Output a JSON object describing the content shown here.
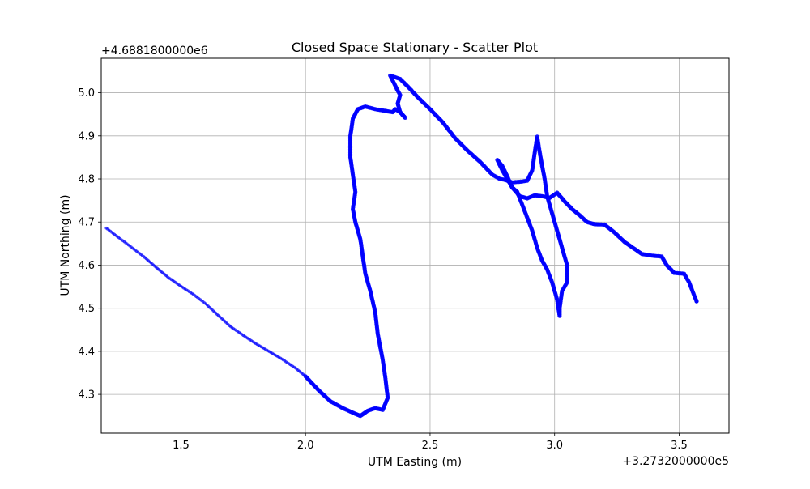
{
  "chart_data": {
    "type": "scatter",
    "title": "Closed Space Stationary - Scatter Plot",
    "xlabel": "UTM Easting (m)",
    "ylabel": "UTM Northing (m)",
    "x_offset_label": "+3.2732000000e5",
    "y_offset_label": "+4.6881800000e6",
    "xlim": [
      1.18,
      3.7
    ],
    "ylim": [
      4.21,
      5.08
    ],
    "xticks": [
      1.5,
      2.0,
      2.5,
      3.0,
      3.5
    ],
    "xtick_labels": [
      "1.5",
      "2.0",
      "2.5",
      "3.0",
      "3.5"
    ],
    "yticks": [
      4.3,
      4.4,
      4.5,
      4.6,
      4.7,
      4.8,
      4.9,
      5.0
    ],
    "ytick_labels": [
      "4.3",
      "4.4",
      "4.5",
      "4.6",
      "4.7",
      "4.8",
      "4.9",
      "5.0"
    ],
    "grid": true,
    "color": "#0000ff",
    "series": [
      {
        "points": [
          [
            1.2,
            4.686
          ],
          [
            1.25,
            4.664
          ],
          [
            1.3,
            4.642
          ],
          [
            1.35,
            4.62
          ],
          [
            1.4,
            4.595
          ],
          [
            1.45,
            4.571
          ],
          [
            1.5,
            4.551
          ],
          [
            1.55,
            4.532
          ],
          [
            1.6,
            4.51
          ],
          [
            1.65,
            4.483
          ],
          [
            1.7,
            4.457
          ],
          [
            1.75,
            4.437
          ],
          [
            1.8,
            4.418
          ],
          [
            1.85,
            4.401
          ],
          [
            1.9,
            4.384
          ],
          [
            1.96,
            4.361
          ],
          [
            2.0,
            4.342
          ],
          [
            2.05,
            4.311
          ],
          [
            2.1,
            4.284
          ],
          [
            2.15,
            4.268
          ],
          [
            2.2,
            4.255
          ],
          [
            2.22,
            4.25
          ],
          [
            2.25,
            4.262
          ],
          [
            2.28,
            4.268
          ],
          [
            2.31,
            4.264
          ],
          [
            2.33,
            4.292
          ],
          [
            2.32,
            4.34
          ],
          [
            2.31,
            4.38
          ],
          [
            2.29,
            4.44
          ],
          [
            2.28,
            4.49
          ],
          [
            2.26,
            4.54
          ],
          [
            2.24,
            4.58
          ],
          [
            2.23,
            4.62
          ],
          [
            2.22,
            4.66
          ],
          [
            2.2,
            4.7
          ],
          [
            2.19,
            4.73
          ],
          [
            2.2,
            4.77
          ],
          [
            2.19,
            4.81
          ],
          [
            2.18,
            4.85
          ],
          [
            2.18,
            4.9
          ],
          [
            2.19,
            4.94
          ],
          [
            2.21,
            4.962
          ],
          [
            2.24,
            4.968
          ],
          [
            2.28,
            4.962
          ],
          [
            2.32,
            4.958
          ],
          [
            2.35,
            4.955
          ],
          [
            2.36,
            4.962
          ],
          [
            2.38,
            4.955
          ],
          [
            2.4,
            4.942
          ],
          [
            2.38,
            4.955
          ],
          [
            2.37,
            4.975
          ],
          [
            2.38,
            4.995
          ],
          [
            2.37,
            5.005
          ],
          [
            2.34,
            5.04
          ],
          [
            2.38,
            5.032
          ],
          [
            2.41,
            5.015
          ],
          [
            2.45,
            4.99
          ],
          [
            2.5,
            4.962
          ],
          [
            2.55,
            4.932
          ],
          [
            2.6,
            4.895
          ],
          [
            2.65,
            4.866
          ],
          [
            2.7,
            4.84
          ],
          [
            2.75,
            4.81
          ],
          [
            2.78,
            4.8
          ],
          [
            2.8,
            4.798
          ],
          [
            2.83,
            4.792
          ],
          [
            2.87,
            4.794
          ],
          [
            2.89,
            4.796
          ],
          [
            2.91,
            4.82
          ],
          [
            2.92,
            4.86
          ],
          [
            2.93,
            4.898
          ],
          [
            2.94,
            4.862
          ],
          [
            2.95,
            4.83
          ],
          [
            2.96,
            4.8
          ],
          [
            2.97,
            4.76
          ],
          [
            2.99,
            4.72
          ],
          [
            3.01,
            4.68
          ],
          [
            3.03,
            4.64
          ],
          [
            3.05,
            4.6
          ],
          [
            3.05,
            4.56
          ],
          [
            3.03,
            4.54
          ],
          [
            3.02,
            4.5
          ],
          [
            3.02,
            4.482
          ],
          [
            3.01,
            4.52
          ],
          [
            2.99,
            4.56
          ],
          [
            2.97,
            4.59
          ],
          [
            2.95,
            4.61
          ],
          [
            2.93,
            4.64
          ],
          [
            2.91,
            4.68
          ],
          [
            2.89,
            4.71
          ],
          [
            2.87,
            4.74
          ],
          [
            2.85,
            4.77
          ],
          [
            2.83,
            4.78
          ],
          [
            2.81,
            4.8
          ],
          [
            2.79,
            4.82
          ],
          [
            2.77,
            4.844
          ],
          [
            2.79,
            4.83
          ],
          [
            2.81,
            4.806
          ],
          [
            2.83,
            4.78
          ],
          [
            2.86,
            4.76
          ],
          [
            2.89,
            4.755
          ],
          [
            2.92,
            4.762
          ],
          [
            2.95,
            4.76
          ],
          [
            2.98,
            4.756
          ],
          [
            3.01,
            4.768
          ],
          [
            3.04,
            4.748
          ],
          [
            3.07,
            4.73
          ],
          [
            3.1,
            4.716
          ],
          [
            3.13,
            4.7
          ],
          [
            3.16,
            4.695
          ],
          [
            3.2,
            4.694
          ],
          [
            3.24,
            4.676
          ],
          [
            3.28,
            4.654
          ],
          [
            3.31,
            4.642
          ],
          [
            3.35,
            4.626
          ],
          [
            3.39,
            4.622
          ],
          [
            3.43,
            4.62
          ],
          [
            3.45,
            4.6
          ],
          [
            3.48,
            4.582
          ],
          [
            3.52,
            4.58
          ],
          [
            3.54,
            4.56
          ],
          [
            3.56,
            4.53
          ],
          [
            3.57,
            4.516
          ]
        ]
      }
    ]
  }
}
